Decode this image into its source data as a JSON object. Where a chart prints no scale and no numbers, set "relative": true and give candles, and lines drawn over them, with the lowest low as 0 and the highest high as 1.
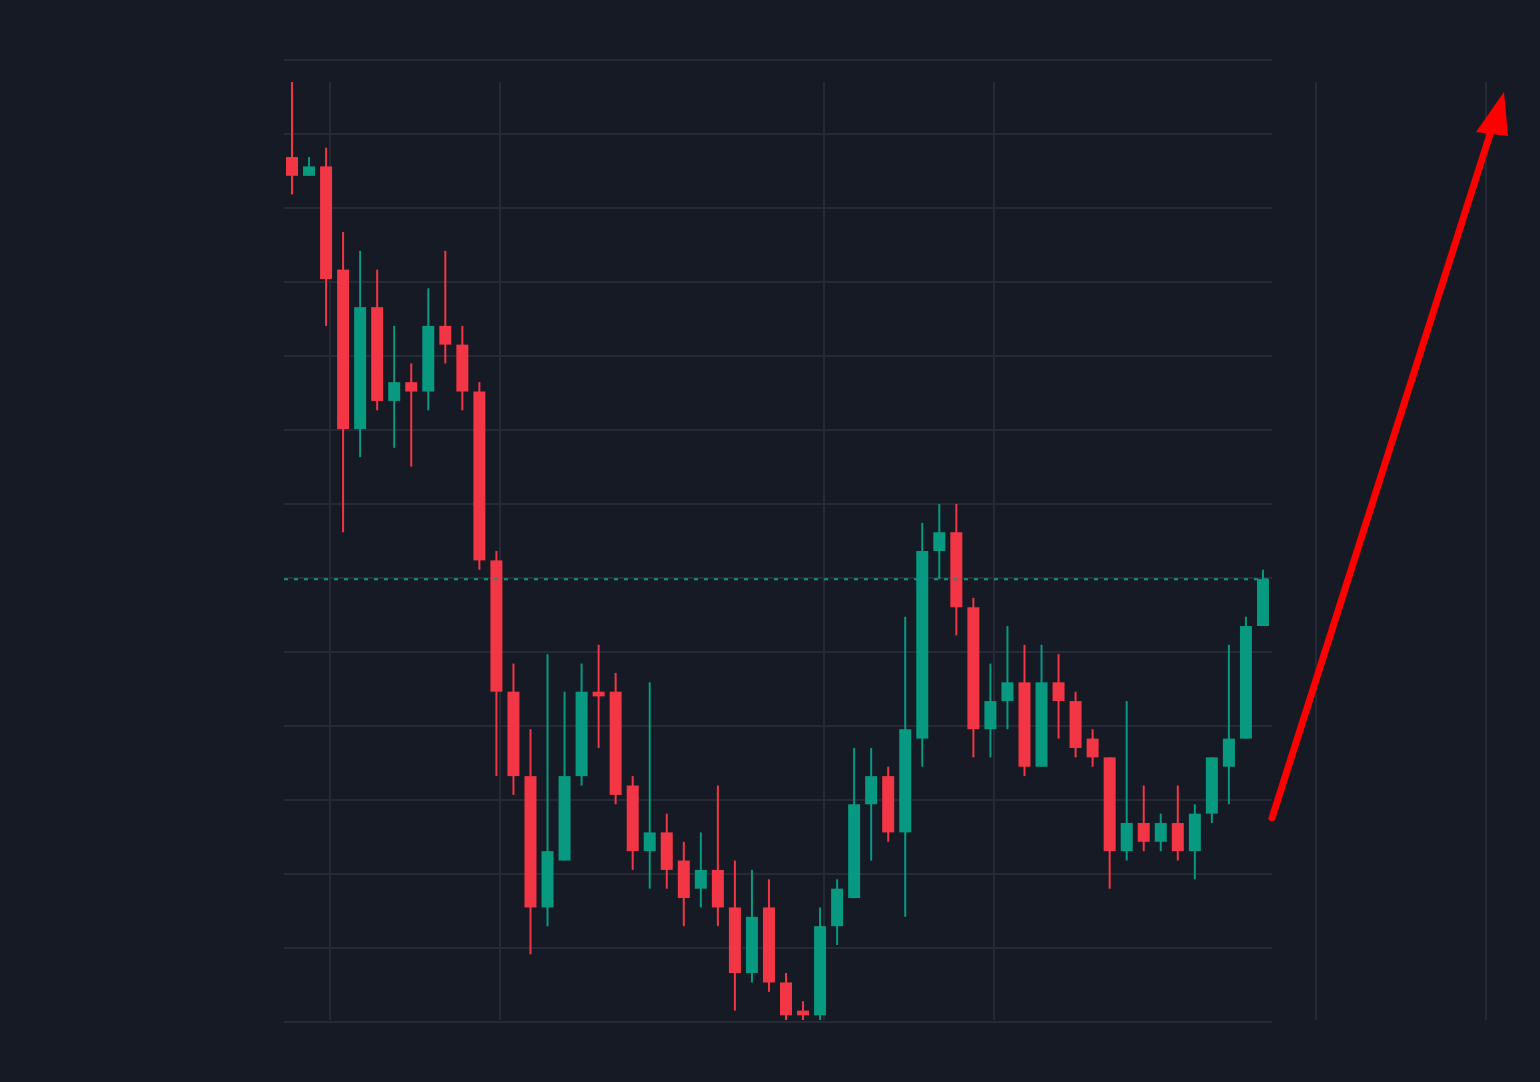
{
  "chart_data": {
    "type": "candlestick",
    "relative": true,
    "grid": true,
    "tick_labels": false,
    "categories": [
      null,
      null,
      null,
      null,
      null,
      null,
      null,
      null,
      null,
      null,
      null,
      null,
      null,
      null,
      null,
      null,
      null,
      null,
      null,
      null,
      null,
      null,
      null,
      null,
      null,
      null,
      null,
      null,
      null,
      null,
      null,
      null,
      null,
      null,
      null,
      null,
      null,
      null,
      null,
      null,
      null,
      null,
      null,
      null,
      null,
      null,
      null,
      null,
      null,
      null,
      null,
      null,
      null,
      null,
      null,
      null,
      null,
      null
    ],
    "ohlc": [
      [
        0.92,
        1.0,
        0.88,
        0.9
      ],
      [
        0.9,
        0.92,
        0.9,
        0.91
      ],
      [
        0.91,
        0.93,
        0.74,
        0.79
      ],
      [
        0.8,
        0.84,
        0.52,
        0.63
      ],
      [
        0.63,
        0.82,
        0.6,
        0.76
      ],
      [
        0.76,
        0.8,
        0.65,
        0.66
      ],
      [
        0.66,
        0.74,
        0.61,
        0.68
      ],
      [
        0.68,
        0.7,
        0.59,
        0.67
      ],
      [
        0.67,
        0.78,
        0.65,
        0.74
      ],
      [
        0.74,
        0.82,
        0.7,
        0.72
      ],
      [
        0.72,
        0.74,
        0.65,
        0.67
      ],
      [
        0.67,
        0.68,
        0.48,
        0.49
      ],
      [
        0.49,
        0.5,
        0.26,
        0.35
      ],
      [
        0.35,
        0.38,
        0.24,
        0.26
      ],
      [
        0.26,
        0.31,
        0.07,
        0.12
      ],
      [
        0.12,
        0.39,
        0.1,
        0.18
      ],
      [
        0.17,
        0.35,
        0.17,
        0.26
      ],
      [
        0.26,
        0.38,
        0.25,
        0.35
      ],
      [
        0.35,
        0.4,
        0.29,
        0.345
      ],
      [
        0.35,
        0.37,
        0.23,
        0.24
      ],
      [
        0.25,
        0.26,
        0.16,
        0.18
      ],
      [
        0.18,
        0.36,
        0.14,
        0.2
      ],
      [
        0.2,
        0.22,
        0.14,
        0.16
      ],
      [
        0.17,
        0.19,
        0.1,
        0.13
      ],
      [
        0.14,
        0.2,
        0.12,
        0.16
      ],
      [
        0.16,
        0.25,
        0.1,
        0.12
      ],
      [
        0.12,
        0.17,
        0.01,
        0.05
      ],
      [
        0.05,
        0.16,
        0.04,
        0.11
      ],
      [
        0.12,
        0.15,
        0.03,
        0.04
      ],
      [
        0.04,
        0.05,
        0.0,
        0.005
      ],
      [
        0.01,
        0.02,
        0.0,
        0.005
      ],
      [
        0.005,
        0.12,
        0.0,
        0.1
      ],
      [
        0.1,
        0.15,
        0.08,
        0.14
      ],
      [
        0.13,
        0.29,
        0.13,
        0.23
      ],
      [
        0.23,
        0.29,
        0.17,
        0.26
      ],
      [
        0.26,
        0.27,
        0.19,
        0.2
      ],
      [
        0.2,
        0.43,
        0.11,
        0.31
      ],
      [
        0.3,
        0.53,
        0.27,
        0.5
      ],
      [
        0.5,
        0.55,
        0.47,
        0.52
      ],
      [
        0.52,
        0.55,
        0.41,
        0.44
      ],
      [
        0.44,
        0.45,
        0.28,
        0.31
      ],
      [
        0.31,
        0.38,
        0.28,
        0.34
      ],
      [
        0.34,
        0.42,
        0.31,
        0.36
      ],
      [
        0.36,
        0.4,
        0.26,
        0.27
      ],
      [
        0.27,
        0.4,
        0.27,
        0.36
      ],
      [
        0.36,
        0.39,
        0.3,
        0.34
      ],
      [
        0.34,
        0.35,
        0.28,
        0.29
      ],
      [
        0.3,
        0.31,
        0.27,
        0.28
      ],
      [
        0.28,
        0.28,
        0.14,
        0.18
      ],
      [
        0.18,
        0.34,
        0.17,
        0.21
      ],
      [
        0.21,
        0.25,
        0.18,
        0.19
      ],
      [
        0.19,
        0.22,
        0.18,
        0.21
      ],
      [
        0.21,
        0.25,
        0.17,
        0.18
      ],
      [
        0.18,
        0.23,
        0.15,
        0.22
      ],
      [
        0.22,
        0.28,
        0.21,
        0.28
      ],
      [
        0.27,
        0.4,
        0.23,
        0.3
      ],
      [
        0.3,
        0.43,
        0.3,
        0.42
      ],
      [
        0.42,
        0.48,
        0.42,
        0.47
      ]
    ],
    "colors": [
      "#f23645",
      "#089981",
      "#f23645",
      "#f23645",
      "#089981",
      "#f23645",
      "#089981",
      "#f23645",
      "#089981",
      "#f23645",
      "#f23645",
      "#f23645",
      "#f23645",
      "#f23645",
      "#f23645",
      "#089981",
      "#089981",
      "#089981",
      "#f23645",
      "#f23645",
      "#f23645",
      "#089981",
      "#f23645",
      "#f23645",
      "#089981",
      "#f23645",
      "#f23645",
      "#089981",
      "#f23645",
      "#f23645",
      "#f23645",
      "#089981",
      "#089981",
      "#089981",
      "#089981",
      "#f23645",
      "#089981",
      "#089981",
      "#089981",
      "#f23645",
      "#f23645",
      "#089981",
      "#089981",
      "#f23645",
      "#089981",
      "#f23645",
      "#f23645",
      "#f23645",
      "#f23645",
      "#089981",
      "#f23645",
      "#089981",
      "#f23645",
      "#089981",
      "#089981",
      "#089981",
      "#089981",
      "#089981"
    ],
    "ref_lines": [
      {
        "axis": "y",
        "value": 0.47,
        "color": "#089981",
        "line_style": "dotted"
      }
    ]
  }
}
